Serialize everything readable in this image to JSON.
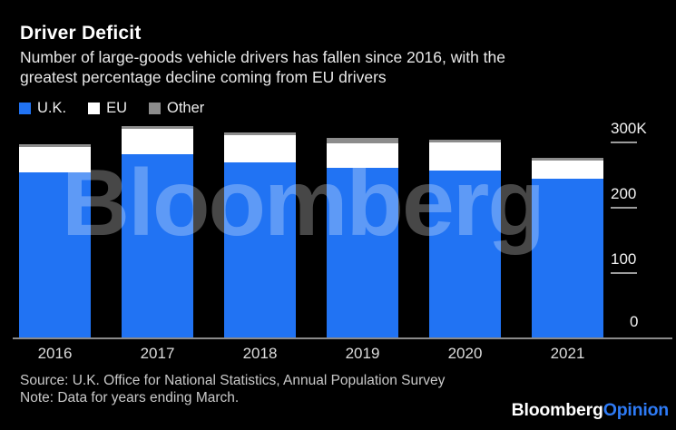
{
  "header": {
    "title": "Driver Deficit",
    "subtitle_line1": "Number of large-goods vehicle drivers has fallen since 2016, with the",
    "subtitle_line2": "greatest percentage decline coming from EU drivers"
  },
  "legend": {
    "items": [
      {
        "label": "U.K.",
        "color": "#2173f3"
      },
      {
        "label": "EU",
        "color": "#ffffff"
      },
      {
        "label": "Other",
        "color": "#8c8c8c"
      }
    ]
  },
  "watermark_text": "Bloomberg",
  "chart_data": {
    "type": "bar",
    "stacked": true,
    "title": "Driver Deficit",
    "subtitle": "Number of large-goods vehicle drivers has fallen since 2016, with the greatest percentage decline coming from EU drivers",
    "categories": [
      "2016",
      "2017",
      "2018",
      "2019",
      "2020",
      "2021"
    ],
    "series": [
      {
        "name": "U.K.",
        "color": "#2173f3",
        "values": [
          253,
          281,
          268,
          260,
          256,
          243
        ]
      },
      {
        "name": "EU",
        "color": "#ffffff",
        "values": [
          39,
          39,
          42,
          37,
          43,
          28
        ]
      },
      {
        "name": "Other",
        "color": "#8c8c8c",
        "values": [
          4,
          3,
          4,
          8,
          4,
          4
        ]
      }
    ],
    "unit": "thousands of drivers",
    "totals": [
      296,
      323,
      314,
      305,
      303,
      275
    ],
    "y_ticks": [
      {
        "label": "300K",
        "value": 300
      },
      {
        "label": "200",
        "value": 200
      },
      {
        "label": "100",
        "value": 100
      },
      {
        "label": "0",
        "value": 0
      }
    ],
    "ylim": [
      0,
      332
    ],
    "grid": false,
    "legend_position": "top-left",
    "axis_side": "right"
  },
  "footer": {
    "source": "Source: U.K. Office for National Statistics, Annual Population Survey",
    "note": "Note: Data for years ending March.",
    "logo": {
      "part1": "Bloomberg",
      "part2": "Opinion",
      "part2_color": "#2e7bf6"
    }
  }
}
